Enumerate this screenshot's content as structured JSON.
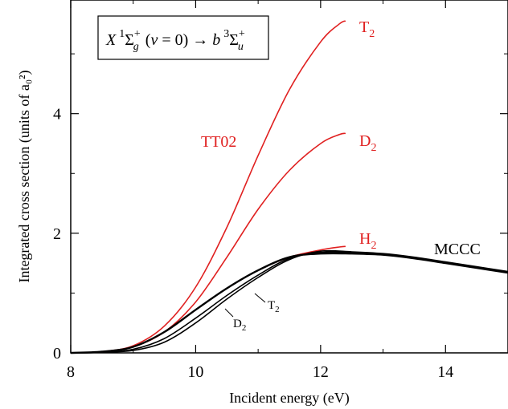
{
  "chart_data": {
    "type": "line",
    "xlabel": "Incident energy (eV)",
    "ylabel": "Integrated cross section (units of a₀²)",
    "xlim": [
      8,
      15
    ],
    "ylim": [
      0,
      5.9
    ],
    "xticks": [
      8,
      10,
      12,
      14
    ],
    "xtick_labels": [
      "8",
      "10",
      "12",
      "14"
    ],
    "yticks": [
      0,
      2,
      4
    ],
    "ytick_labels": [
      "0",
      "2",
      "4"
    ],
    "grid": false,
    "transition_label": "X ¹Σg⁺(v = 0) → b ³Σu⁺",
    "group_labels": {
      "red": "TT02",
      "black": "MCCC"
    },
    "series": [
      {
        "name": "T2",
        "group": "TT02",
        "color": "#e02020",
        "width": 1.6,
        "points": [
          [
            8.0,
            0.0
          ],
          [
            8.5,
            0.02
          ],
          [
            9.0,
            0.12
          ],
          [
            9.5,
            0.45
          ],
          [
            10.0,
            1.1
          ],
          [
            10.5,
            2.1
          ],
          [
            11.0,
            3.3
          ],
          [
            11.5,
            4.4
          ],
          [
            12.0,
            5.2
          ],
          [
            12.3,
            5.5
          ],
          [
            12.4,
            5.55
          ]
        ]
      },
      {
        "name": "D2",
        "group": "TT02",
        "color": "#e02020",
        "width": 1.6,
        "points": [
          [
            8.0,
            0.0
          ],
          [
            8.5,
            0.02
          ],
          [
            9.0,
            0.1
          ],
          [
            9.5,
            0.35
          ],
          [
            10.0,
            0.85
          ],
          [
            10.5,
            1.6
          ],
          [
            11.0,
            2.4
          ],
          [
            11.5,
            3.05
          ],
          [
            12.0,
            3.5
          ],
          [
            12.3,
            3.65
          ],
          [
            12.4,
            3.67
          ]
        ]
      },
      {
        "name": "H2",
        "group": "TT02",
        "color": "#e02020",
        "width": 1.6,
        "points": [
          [
            8.0,
            0.0
          ],
          [
            8.5,
            0.02
          ],
          [
            9.0,
            0.1
          ],
          [
            9.5,
            0.35
          ],
          [
            10.0,
            0.72
          ],
          [
            10.5,
            1.08
          ],
          [
            11.0,
            1.38
          ],
          [
            11.5,
            1.6
          ],
          [
            12.0,
            1.72
          ],
          [
            12.3,
            1.77
          ],
          [
            12.4,
            1.78
          ]
        ]
      },
      {
        "name": "H2",
        "group": "MCCC",
        "color": "#000000",
        "width": 2.4,
        "points": [
          [
            8.0,
            0.0
          ],
          [
            8.5,
            0.02
          ],
          [
            9.0,
            0.1
          ],
          [
            9.5,
            0.35
          ],
          [
            10.0,
            0.72
          ],
          [
            10.5,
            1.08
          ],
          [
            11.0,
            1.38
          ],
          [
            11.5,
            1.6
          ],
          [
            12.0,
            1.66
          ],
          [
            12.5,
            1.66
          ],
          [
            13.0,
            1.64
          ],
          [
            13.5,
            1.58
          ],
          [
            14.0,
            1.5
          ],
          [
            14.5,
            1.42
          ],
          [
            15.0,
            1.34
          ]
        ]
      },
      {
        "name": "D2",
        "group": "MCCC",
        "color": "#000000",
        "width": 1.6,
        "points": [
          [
            8.0,
            0.0
          ],
          [
            8.5,
            0.01
          ],
          [
            9.0,
            0.06
          ],
          [
            9.5,
            0.24
          ],
          [
            10.0,
            0.58
          ],
          [
            10.5,
            0.96
          ],
          [
            11.0,
            1.3
          ],
          [
            11.5,
            1.58
          ],
          [
            12.0,
            1.68
          ],
          [
            12.5,
            1.68
          ],
          [
            13.0,
            1.65
          ],
          [
            13.5,
            1.59
          ],
          [
            14.0,
            1.51
          ],
          [
            14.5,
            1.43
          ],
          [
            15.0,
            1.35
          ]
        ]
      },
      {
        "name": "T2",
        "group": "MCCC",
        "color": "#000000",
        "width": 1.6,
        "points": [
          [
            8.0,
            0.0
          ],
          [
            8.5,
            0.01
          ],
          [
            9.0,
            0.04
          ],
          [
            9.5,
            0.18
          ],
          [
            10.0,
            0.5
          ],
          [
            10.5,
            0.9
          ],
          [
            11.0,
            1.26
          ],
          [
            11.5,
            1.56
          ],
          [
            12.0,
            1.7
          ],
          [
            12.5,
            1.69
          ],
          [
            13.0,
            1.66
          ],
          [
            13.5,
            1.6
          ],
          [
            14.0,
            1.52
          ],
          [
            14.5,
            1.44
          ],
          [
            15.0,
            1.36
          ]
        ]
      }
    ]
  }
}
